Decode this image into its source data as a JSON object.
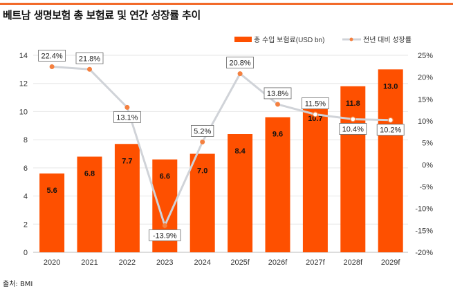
{
  "title": "베트남 생명보험 총 보험료 및 연간 성장률 추이",
  "source": "출처: BMI",
  "colors": {
    "bar": "#fe5000",
    "line": "#d0d3d8",
    "marker": "#f4803f",
    "accent": "#f26a2a"
  },
  "chart_data": {
    "type": "bar+line",
    "title": "베트남 생명보험 총 보험료 및 연간 성장률 추이",
    "categories": [
      "2020",
      "2021",
      "2022",
      "2023",
      "2024",
      "2025f",
      "2026f",
      "2027f",
      "2028f",
      "2029f"
    ],
    "legend_position": "top-right",
    "grid": true,
    "series": [
      {
        "name": "총 수입 보험료(USD bn)",
        "type": "bar",
        "axis": "left",
        "values": [
          5.6,
          6.8,
          7.7,
          6.6,
          7.0,
          8.4,
          9.6,
          10.7,
          11.8,
          13.0
        ],
        "labels": [
          "5.6",
          "6.8",
          "7.7",
          "6.6",
          "7.0",
          "8.4",
          "9.6",
          "10.7",
          "11.8",
          "13.0"
        ]
      },
      {
        "name": "전년 대비 성장률",
        "type": "line",
        "axis": "right",
        "values": [
          22.4,
          21.8,
          13.1,
          -13.9,
          5.2,
          20.8,
          13.8,
          11.5,
          10.4,
          10.2
        ],
        "labels": [
          "22.4%",
          "21.8%",
          "13.1%",
          "-13.9%",
          "5.2%",
          "20.8%",
          "13.8%",
          "11.5%",
          "10.4%",
          "10.2%"
        ]
      }
    ],
    "y_left": {
      "ylim": [
        0,
        14
      ],
      "ticks": [
        "0",
        "2",
        "4",
        "6",
        "8",
        "10",
        "12",
        "14"
      ]
    },
    "y_right": {
      "ylim": [
        -20,
        25
      ],
      "ticks": [
        "-20%",
        "-15%",
        "-10%",
        "-5%",
        "0%",
        "5%",
        "10%",
        "15%",
        "20%",
        "25%"
      ]
    }
  }
}
